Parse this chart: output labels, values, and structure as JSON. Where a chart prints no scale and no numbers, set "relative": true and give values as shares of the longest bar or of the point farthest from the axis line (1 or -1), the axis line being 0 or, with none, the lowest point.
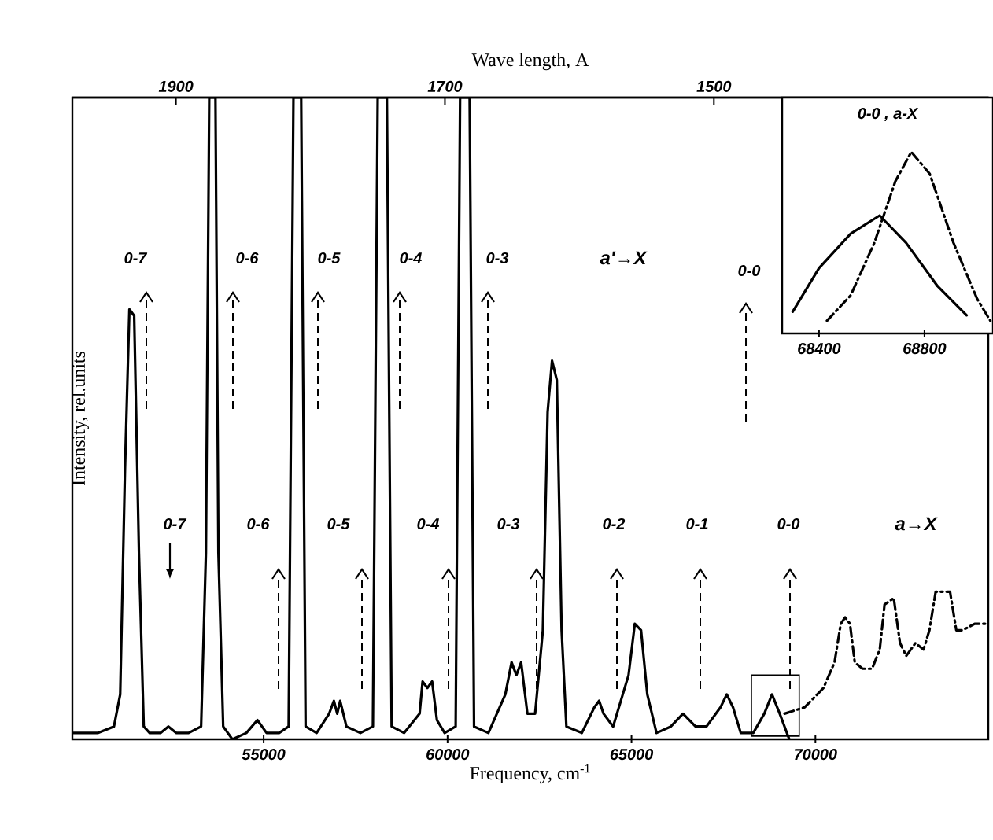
{
  "chart_data": [
    {
      "type": "line",
      "relative": true,
      "xlabel": "Frequency, cm$^{-1}$",
      "ylabel": "Intensity, rel.units",
      "x2label": "Wave length, A",
      "xlim": [
        49800,
        74700
      ],
      "xticks": [
        55000,
        60000,
        65000,
        70000
      ],
      "x2lim": [
        1977,
        1296
      ],
      "x2ticks": [
        1900,
        1700,
        1500
      ],
      "marker": "none",
      "series": [
        {
          "color": "#000000",
          "line_style": "solid",
          "x": [
            49830,
            50500,
            50930,
            51100,
            51230,
            51350,
            51480,
            51610,
            51740,
            51900,
            52200,
            52410,
            52620,
            52960,
            53300,
            53430,
            53520,
            53690,
            53770,
            53900,
            54150,
            54530,
            54830,
            55080,
            55420,
            55680,
            55810,
            56020,
            56140,
            56440,
            56780,
            56910,
            57000,
            57080,
            57250,
            57630,
            57970,
            58100,
            58350,
            58480,
            58820,
            59240,
            59320,
            59450,
            59580,
            59710,
            59920,
            60220,
            60340,
            60600,
            60720,
            61110,
            61570,
            61740,
            61870,
            62000,
            62170,
            62380,
            62590,
            62720,
            62840,
            62970,
            63100,
            63230,
            63650,
            63990,
            64120,
            64240,
            64500,
            64920,
            65090,
            65260,
            65430,
            65680,
            66070,
            66400,
            66740,
            67040,
            67420,
            67590,
            67760,
            67970,
            68310,
            68610,
            68820,
            69030,
            69290
          ],
          "values": [
            0.01,
            0.01,
            0.02,
            0.07,
            0.42,
            0.67,
            0.66,
            0.29,
            0.02,
            0.01,
            0.01,
            0.02,
            0.01,
            0.01,
            0.02,
            0.29,
            1,
            1,
            0.29,
            0.02,
            0,
            0.01,
            0.03,
            0.01,
            0.01,
            0.02,
            1,
            1,
            0.02,
            0.01,
            0.04,
            0.06,
            0.04,
            0.06,
            0.02,
            0.01,
            0.02,
            1,
            1,
            0.02,
            0.01,
            0.04,
            0.09,
            0.08,
            0.09,
            0.03,
            0.01,
            0.02,
            1,
            1,
            0.02,
            0.01,
            0.07,
            0.12,
            0.1,
            0.12,
            0.04,
            0.04,
            0.17,
            0.51,
            0.59,
            0.56,
            0.17,
            0.02,
            0.01,
            0.05,
            0.06,
            0.04,
            0.02,
            0.1,
            0.18,
            0.17,
            0.07,
            0.01,
            0.02,
            0.04,
            0.02,
            0.02,
            0.05,
            0.07,
            0.05,
            0.01,
            0.01,
            0.04,
            0.07,
            0.04,
            0
          ]
        },
        {
          "color": "#000000",
          "line_style": "dashed",
          "x": [
            69160,
            69710,
            70220,
            70520,
            70690,
            70810,
            70940,
            71070,
            71280,
            71540,
            71750,
            71880,
            72130,
            72300,
            72470,
            72720,
            72940,
            73100,
            73270,
            73660,
            73830,
            74000,
            74330,
            74700
          ],
          "values": [
            0.04,
            0.05,
            0.08,
            0.12,
            0.18,
            0.19,
            0.18,
            0.12,
            0.11,
            0.11,
            0.14,
            0.21,
            0.22,
            0.15,
            0.13,
            0.15,
            0.14,
            0.17,
            0.23,
            0.23,
            0.17,
            0.17,
            0.18,
            0.18
          ]
        }
      ],
      "annotations": [
        "0-7",
        "0-6",
        "0-5",
        "0-4",
        "0-3",
        "0-0",
        "0-7",
        "0-6",
        "0-5",
        "0-4",
        "0-3",
        "0-2",
        "0-1",
        "0-0",
        "a′→X",
        "a→X"
      ]
    },
    {
      "type": "line",
      "relative": true,
      "title": "0-0 , a-X",
      "xlim": [
        68260,
        69060
      ],
      "xticks": [
        68400,
        68800
      ],
      "marker": "none",
      "series": [
        {
          "color": "#000000",
          "line_style": "solid",
          "x": [
            68300,
            68400,
            68520,
            68630,
            68730,
            68850,
            68960
          ],
          "values": [
            0.12,
            0.36,
            0.55,
            0.65,
            0.5,
            0.26,
            0.1
          ]
        },
        {
          "color": "#000000",
          "line_style": "dashed",
          "x": [
            68430,
            68520,
            68610,
            68690,
            68750,
            68820,
            68910,
            69000,
            69050
          ],
          "values": [
            0.07,
            0.21,
            0.5,
            0.84,
            1.0,
            0.88,
            0.5,
            0.19,
            0.07
          ]
        }
      ]
    }
  ]
}
